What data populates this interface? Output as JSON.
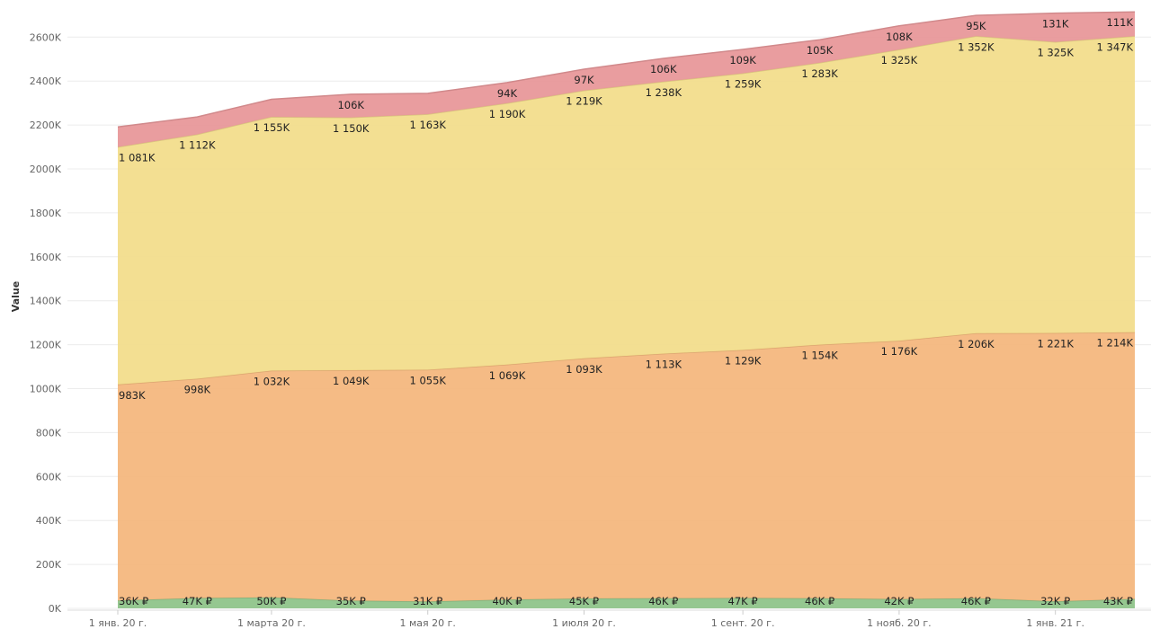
{
  "chart_data": {
    "type": "area",
    "stacked": true,
    "ylabel": "Value",
    "xlabel": "",
    "y_ticks": [
      "0K",
      "200K",
      "400K",
      "600K",
      "800K",
      "1000K",
      "1200K",
      "1400K",
      "1600K",
      "1800K",
      "2000K",
      "2200K",
      "2400K",
      "2600K"
    ],
    "ylim": [
      0,
      2720
    ],
    "x_tick_labels": [
      {
        "label": "1 янв. 20 г.",
        "date": "2020-01-01"
      },
      {
        "label": "1 марта 20 г.",
        "date": "2020-03-01"
      },
      {
        "label": "1 мая 20 г.",
        "date": "2020-05-01"
      },
      {
        "label": "1 июля 20 г.",
        "date": "2020-07-01"
      },
      {
        "label": "1 сент. 20 г.",
        "date": "2020-09-01"
      },
      {
        "label": "1 нояб. 20 г.",
        "date": "2020-11-01"
      },
      {
        "label": "1 янв. 21 г.",
        "date": "2021-01-01"
      }
    ],
    "x": [
      "2020-01-01",
      "2020-02-01",
      "2020-03-01",
      "2020-04-01",
      "2020-05-01",
      "2020-06-01",
      "2020-07-01",
      "2020-08-01",
      "2020-09-01",
      "2020-10-01",
      "2020-11-01",
      "2020-12-01",
      "2021-01-01",
      "2021-02-01"
    ],
    "grid": true,
    "series": [
      {
        "color": "#8fc48a",
        "values": [
          36,
          47,
          50,
          35,
          31,
          40,
          45,
          46,
          47,
          46,
          42,
          46,
          32,
          43
        ],
        "labels": [
          "36K ₽",
          "47K ₽",
          "50K ₽",
          "35K ₽",
          "31K ₽",
          "40K ₽",
          "45K ₽",
          "46K ₽",
          "47K ₽",
          "46K ₽",
          "42K ₽",
          "46K ₽",
          "32K ₽",
          "43K ₽"
        ]
      },
      {
        "color": "#f4b77e",
        "values": [
          983,
          998,
          1032,
          1049,
          1055,
          1069,
          1093,
          1113,
          1129,
          1154,
          1176,
          1206,
          1221,
          1214
        ],
        "labels": [
          "983K",
          "998K",
          "1 032K",
          "1 049K",
          "1 055K",
          "1 069K",
          "1 093K",
          "1 113K",
          "1 129K",
          "1 154K",
          "1 176K",
          "1 206K",
          "1 221K",
          "1 214K"
        ]
      },
      {
        "color": "#f2dd8c",
        "values": [
          1081,
          1112,
          1155,
          1150,
          1163,
          1190,
          1219,
          1238,
          1259,
          1283,
          1325,
          1352,
          1325,
          1347
        ],
        "labels": [
          "1 081K",
          "1 112K",
          "1 155K",
          "1 150K",
          "1 163K",
          "1 190K",
          "1 219K",
          "1 238K",
          "1 259K",
          "1 283K",
          "1 325K",
          "1 352K",
          "1 325K",
          "1 347K"
        ]
      },
      {
        "color": "#e8989a",
        "values": [
          91,
          80,
          80,
          106,
          95,
          94,
          97,
          106,
          109,
          105,
          108,
          95,
          131,
          111
        ],
        "labels": [
          "",
          "",
          "",
          "106K",
          "",
          "94K",
          "97K",
          "106K",
          "109K",
          "105K",
          "108K",
          "95K",
          "131K",
          "111K"
        ]
      }
    ]
  }
}
